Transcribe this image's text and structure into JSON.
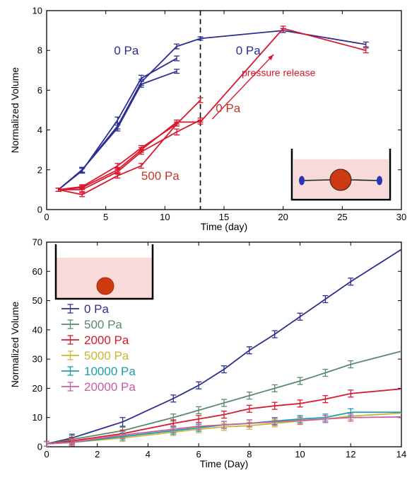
{
  "chart_data": [
    {
      "type": "line",
      "xlabel": "Time (day)",
      "ylabel": "Normalized Volume",
      "xlim": [
        0,
        30
      ],
      "ylim": [
        0,
        10
      ],
      "xticks": [
        0,
        5,
        10,
        15,
        20,
        25,
        30
      ],
      "yticks": [
        0,
        2,
        4,
        6,
        8,
        10
      ],
      "grid": false,
      "colors": {
        "blue": "#2b2f8f",
        "red": "#d8182e",
        "redtext": "#c0392b"
      },
      "vline_x": 13,
      "series": [
        {
          "color": "blue",
          "x": [
            1,
            3,
            6,
            8,
            11,
            13,
            20,
            27
          ],
          "y": [
            1,
            2,
            4.2,
            6.4,
            8.2,
            8.6,
            9,
            8.3
          ],
          "err": [
            0.08,
            0.12,
            0.15,
            0.15,
            0.12,
            0.08,
            0.1,
            0.12
          ]
        },
        {
          "color": "blue",
          "x": [
            1,
            3,
            6,
            8,
            11
          ],
          "y": [
            1,
            1.95,
            4.5,
            6.6,
            7.6
          ],
          "err": [
            0.08,
            0.12,
            0.15,
            0.15,
            0.12
          ]
        },
        {
          "color": "blue",
          "x": [
            1,
            3,
            6,
            8,
            11
          ],
          "y": [
            1,
            2,
            4.1,
            6.3,
            6.95
          ],
          "err": [
            0.08,
            0.12,
            0.15,
            0.15,
            0.1
          ]
        },
        {
          "color": "red",
          "x": [
            1,
            3,
            6,
            8,
            11,
            13,
            20,
            27
          ],
          "y": [
            1,
            1.1,
            2,
            3,
            4.4,
            4.4,
            9.1,
            8
          ],
          "err": [
            0.08,
            0.1,
            0.12,
            0.12,
            0.1,
            0.1,
            0.12,
            0.12
          ]
        },
        {
          "color": "red",
          "x": [
            1,
            3,
            6,
            8,
            11,
            13
          ],
          "y": [
            1,
            0.75,
            1.7,
            2.2,
            4.3,
            5.5
          ],
          "err": [
            0.08,
            0.1,
            0.12,
            0.12,
            0.1,
            0.12
          ]
        },
        {
          "color": "red",
          "x": [
            1,
            3,
            6,
            8,
            11,
            13
          ],
          "y": [
            1,
            1.0,
            1.9,
            2.9,
            3.9,
            4.5
          ],
          "err": [
            0.08,
            0.1,
            0.12,
            0.12,
            0.15,
            0.1
          ]
        },
        {
          "color": "red",
          "x": [
            1,
            3,
            6,
            8,
            11
          ],
          "y": [
            1,
            1.15,
            2.2,
            3.1,
            4.3
          ],
          "err": [
            0.08,
            0.1,
            0.12,
            0.12,
            0.1
          ]
        }
      ],
      "annotations": [
        {
          "text": "0 Pa",
          "x": 5.7,
          "y": 7.8,
          "color": "blue"
        },
        {
          "text": "0 Pa",
          "x": 16,
          "y": 7.8,
          "color": "blue"
        },
        {
          "text": "pressure release",
          "x": 16.5,
          "y": 6.7,
          "color": "red"
        },
        {
          "text": "0 Pa",
          "x": 14.3,
          "y": 4.9,
          "color": "redtext"
        },
        {
          "text": "500 Pa",
          "x": 8,
          "y": 1.5,
          "color": "redtext"
        }
      ]
    },
    {
      "type": "line",
      "xlabel": "Time (Day)",
      "ylabel": "Normalized Volume",
      "xlim": [
        0,
        14
      ],
      "ylim": [
        0,
        70
      ],
      "xticks": [
        0,
        2,
        4,
        6,
        8,
        10,
        12,
        14
      ],
      "yticks": [
        0,
        10,
        20,
        30,
        40,
        50,
        60,
        70
      ],
      "grid": false,
      "legend_position": "left",
      "series": [
        {
          "name": "0 Pa",
          "color": "#2b2f8f",
          "x": [
            0,
            1,
            3,
            5,
            6,
            7,
            8,
            9,
            10,
            11,
            12
          ],
          "y": [
            1,
            3,
            8.5,
            16.5,
            21,
            26.5,
            33,
            38.5,
            44.5,
            50.5,
            56.5
          ],
          "err": [
            0.8,
            1.3,
            1.5,
            1.2,
            1.2,
            1.2,
            1.2,
            1.2,
            1.2,
            1.2,
            1.2
          ],
          "fit_end": 67.5
        },
        {
          "name": "500 Pa",
          "color": "#5a8a6a",
          "x": [
            0,
            1,
            3,
            5,
            6,
            7,
            8,
            9,
            10,
            11,
            12
          ],
          "y": [
            1,
            2.5,
            5.5,
            10,
            12.5,
            15,
            17.5,
            20,
            22.5,
            25.3,
            28.2
          ],
          "err": [
            0.8,
            1.3,
            1.2,
            1.2,
            1.2,
            1.2,
            1.2,
            1.2,
            1.2,
            1.2,
            1.2
          ],
          "fit_end": 32.7
        },
        {
          "name": "2000 Pa",
          "color": "#d8182e",
          "x": [
            0,
            1,
            3,
            5,
            6,
            7,
            8,
            9,
            10,
            11,
            12
          ],
          "y": [
            1,
            2,
            4.5,
            8,
            9.5,
            11,
            13,
            14,
            14.8,
            16.3,
            18.2
          ],
          "err": [
            0.8,
            1.2,
            1.2,
            1.2,
            1.2,
            1.2,
            1.2,
            1.2,
            1.2,
            1.2,
            1.2
          ],
          "fit_end": 19.8
        },
        {
          "name": "5000 Pa",
          "color": "#c9b835",
          "x": [
            0,
            1,
            3,
            5,
            6,
            7,
            8,
            9,
            10,
            11,
            12
          ],
          "y": [
            1,
            1.5,
            3,
            5,
            6,
            6.8,
            7.2,
            8,
            8.8,
            9.5,
            10.5
          ],
          "err": [
            0.8,
            1.2,
            1.2,
            1.2,
            1.2,
            1.2,
            1.2,
            1.2,
            1.2,
            1.2,
            1.2
          ],
          "fit_end": 11.5
        },
        {
          "name": "10000 Pa",
          "color": "#1a9cb0",
          "x": [
            0,
            1,
            3,
            5,
            6,
            7,
            8,
            9,
            10,
            11,
            12
          ],
          "y": [
            1,
            1.5,
            3.5,
            5.5,
            6.5,
            7.5,
            8,
            8.8,
            9.5,
            10,
            11.8
          ],
          "err": [
            0.8,
            1.2,
            1.2,
            1.2,
            1.2,
            1.2,
            1.2,
            1.2,
            1.2,
            1.2,
            1.2
          ],
          "fit_end": 11.8
        },
        {
          "name": "20000 Pa",
          "color": "#c8609a",
          "x": [
            0,
            1,
            3,
            5,
            6,
            7,
            8,
            9,
            10,
            11,
            12
          ],
          "y": [
            1,
            1.5,
            4,
            6,
            7,
            7.5,
            8,
            8.5,
            9,
            9.5,
            10
          ],
          "err": [
            0.8,
            1.2,
            1.2,
            1.2,
            1.2,
            1.2,
            1.2,
            1.2,
            1.2,
            1.2,
            1.2
          ],
          "fit_end": 10.2
        }
      ]
    }
  ]
}
